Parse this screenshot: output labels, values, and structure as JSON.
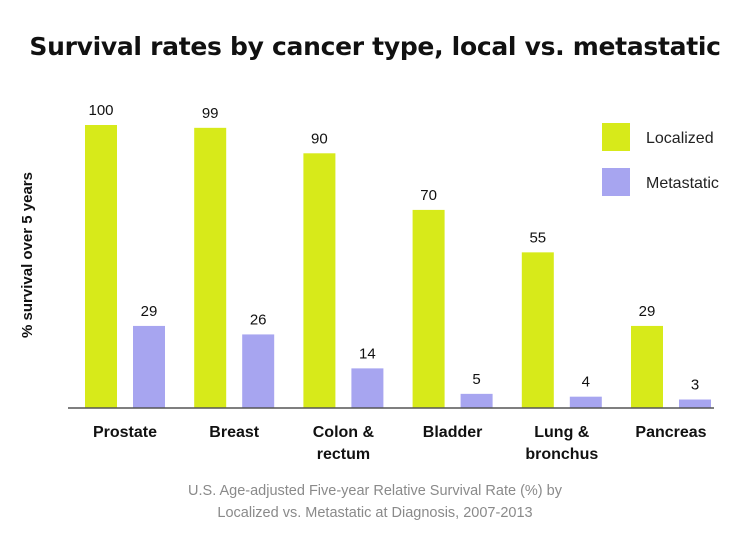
{
  "chart_data": {
    "type": "bar",
    "title": "Survival rates by cancer type, local vs. metastatic",
    "ylabel": "% survival over 5 years",
    "xlabel": "",
    "ylim": [
      0,
      100
    ],
    "grid": false,
    "legend_position": "top-right",
    "categories": [
      [
        "Prostate"
      ],
      [
        "Breast"
      ],
      [
        "Colon &",
        "rectum"
      ],
      [
        "Bladder"
      ],
      [
        "Lung &",
        "bronchus"
      ],
      [
        "Pancreas"
      ]
    ],
    "series": [
      {
        "name": "Localized",
        "color": "#d7ea1a",
        "values": [
          100,
          99,
          90,
          70,
          55,
          29
        ]
      },
      {
        "name": "Metastatic",
        "color": "#a7a5f0",
        "values": [
          29,
          26,
          14,
          5,
          4,
          3
        ]
      }
    ],
    "caption": [
      "U.S. Age-adjusted Five-year Relative Survival Rate (%) by",
      "Localized vs. Metastatic at Diagnosis, 2007-2013"
    ]
  }
}
